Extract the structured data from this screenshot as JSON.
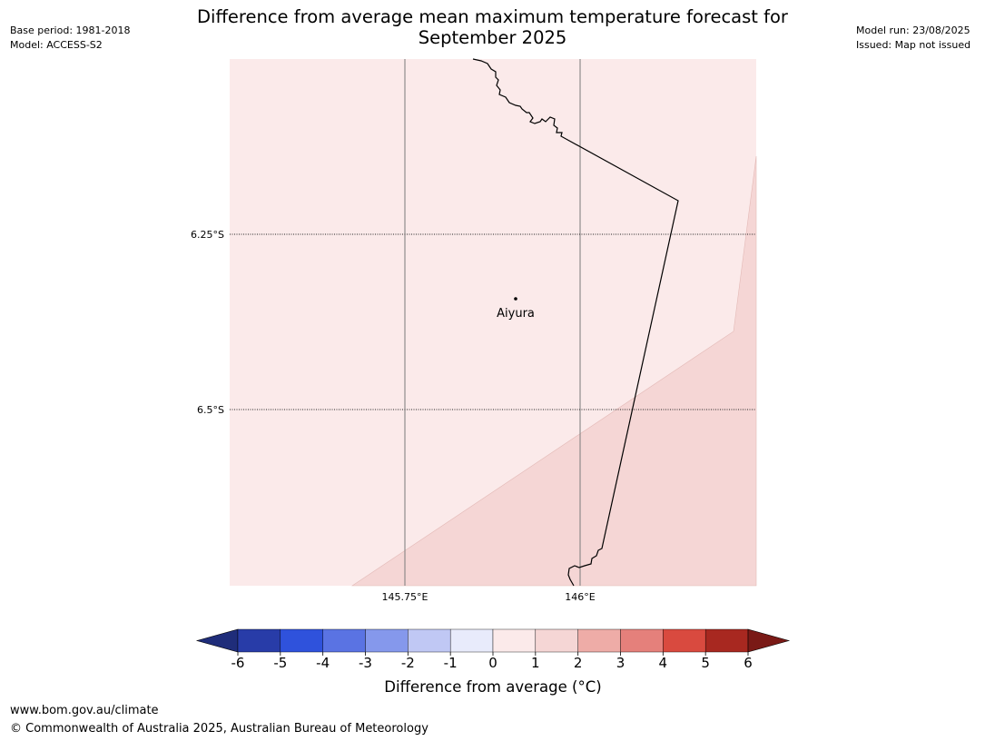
{
  "title_line1": "Difference from average mean maximum temperature forecast for",
  "title_line2": "September 2025",
  "meta_left": {
    "base_period": "Base period: 1981-2018",
    "model": "Model: ACCESS-S2"
  },
  "meta_right": {
    "model_run": "Model run: 23/08/2025",
    "issued": "Issued: Map not issued"
  },
  "map": {
    "lon_range": [
      145.5,
      146.25
    ],
    "lat_range": [
      -6.75,
      -6.0
    ],
    "lon_ticks": [
      {
        "value": 145.75,
        "label": "145.75°E"
      },
      {
        "value": 146.0,
        "label": "146°E"
      }
    ],
    "lat_ticks": [
      {
        "value": -6.25,
        "label": "6.25°S"
      },
      {
        "value": -6.5,
        "label": "6.5°S"
      }
    ],
    "town": {
      "name": "Aiyura",
      "lon": 145.906,
      "lat": -6.336
    },
    "regions": [
      {
        "category": "0 to 1",
        "color": "#fbeaea"
      },
      {
        "category": "1 to 2",
        "color": "#f5d6d5"
      }
    ]
  },
  "colorbar": {
    "label": "Difference from average (°C)",
    "ticks": [
      "-6",
      "-5",
      "-4",
      "-3",
      "-2",
      "-1",
      "0",
      "1",
      "2",
      "3",
      "4",
      "5",
      "6"
    ],
    "under_color": "#1f2d7a",
    "over_color": "#7a1a16",
    "colors": [
      "#283ca8",
      "#2f52dc",
      "#5a73e3",
      "#8598ec",
      "#c0c8f4",
      "#e8ebfb",
      "#fbeaea",
      "#f5d6d5",
      "#eeaca7",
      "#e5807b",
      "#d94a3f",
      "#a82820"
    ]
  },
  "footer": {
    "url": "www.bom.gov.au/climate",
    "copyright": "© Commonwealth of Australia 2025, Australian Bureau of Meteorology"
  }
}
